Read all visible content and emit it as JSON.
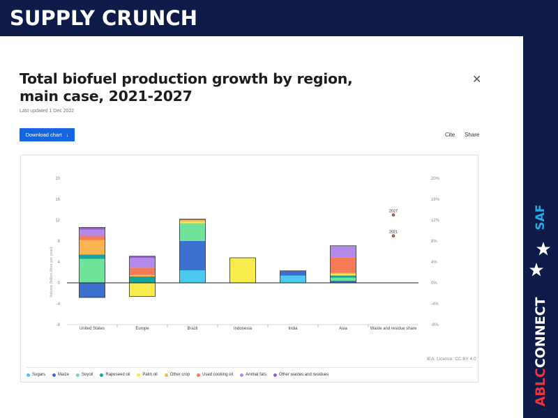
{
  "slide": {
    "header_title": "SUPPLY CRUNCH",
    "side_tag": "SAF",
    "brand_prefix": "ABLC",
    "brand_suffix": "CONNECT",
    "colors": {
      "band": "#0e1a47",
      "tag": "#27a9e1",
      "brand_accent": "#e8373f"
    }
  },
  "card": {
    "title": "Total biofuel production growth by region, main case, 2021-2027",
    "updated": "Last updated 1 Dec 2022",
    "download_label": "Download chart",
    "download_icon": "download-arrow-icon",
    "cite_label": "Cite",
    "share_label": "Share",
    "close_icon": "close-icon",
    "licence": "IEA. Licence: CC BY 4.0"
  },
  "chart_data": {
    "type": "bar",
    "stacked": true,
    "categories": [
      "United States",
      "Europe",
      "Brazil",
      "Indonesia",
      "India",
      "Asia",
      "Waste and residue share"
    ],
    "ylabel": "Volume (billion litres per year)",
    "ylim": [
      -8,
      20
    ],
    "yticks": [
      -8,
      -4,
      0,
      4,
      8,
      12,
      16,
      20
    ],
    "y2lim": [
      -8,
      20
    ],
    "y2ticks": [
      "-8%",
      "-4%",
      "0%",
      "4%",
      "8%",
      "12%",
      "16%",
      "20%"
    ],
    "grid": false,
    "legend_position": "bottom",
    "series": [
      {
        "name": "Sugars",
        "color": "#4cc9f0",
        "values": [
          0,
          0,
          2.4,
          0,
          1.4,
          0,
          0
        ]
      },
      {
        "name": "Maize",
        "color": "#3a6fce",
        "values": [
          -2.8,
          0,
          5.6,
          0,
          0.9,
          0.4,
          0
        ]
      },
      {
        "name": "Soyoil",
        "color": "#6fe39a",
        "values": [
          4.6,
          0,
          3.4,
          0,
          0,
          0.6,
          0
        ]
      },
      {
        "name": "Rapeseed oil",
        "color": "#16a39a",
        "values": [
          0.8,
          1.2,
          0,
          0,
          0,
          0.4,
          0
        ]
      },
      {
        "name": "Palm oil",
        "color": "#f7ec4b",
        "values": [
          0,
          -2.6,
          0.3,
          4.8,
          0,
          0.3,
          0
        ]
      },
      {
        "name": "Other crop",
        "color": "#fbb450",
        "values": [
          2.8,
          0.3,
          0.3,
          0,
          0,
          0.2,
          0
        ]
      },
      {
        "name": "Used cooking oil",
        "color": "#f47a58",
        "values": [
          0.8,
          1.4,
          0.2,
          0,
          0,
          3.0,
          0
        ]
      },
      {
        "name": "Animal fats",
        "color": "#b48ae8",
        "values": [
          1.2,
          1.9,
          0,
          0,
          0,
          2.2,
          0
        ]
      },
      {
        "name": "Other wastes and residues",
        "color": "#9b59d0",
        "values": [
          0.4,
          0.3,
          0,
          0,
          0,
          0,
          0
        ]
      }
    ],
    "annotations": [
      {
        "label": "2027",
        "category": "Waste and residue share",
        "y2": 13
      },
      {
        "label": "2021",
        "category": "Waste and residue share",
        "y2": 9
      }
    ]
  }
}
